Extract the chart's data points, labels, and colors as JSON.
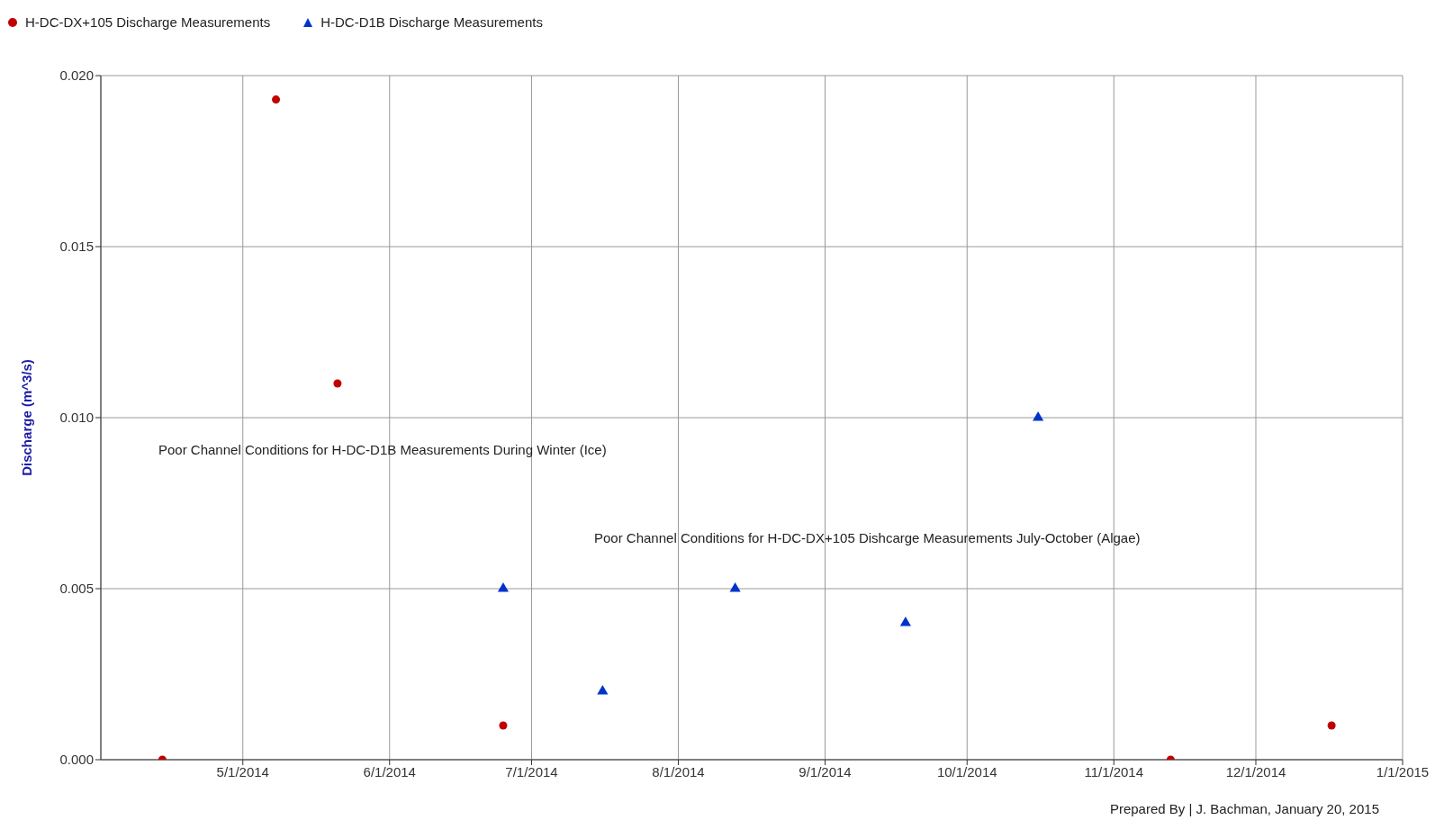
{
  "chart_data": {
    "type": "scatter",
    "ylabel": "Discharge (m^3/s)",
    "series": [
      {
        "name": "H-DC-DX+105 Discharge Measurements",
        "color": "#c00000",
        "marker": "circle",
        "x": [
          "2014-04-14",
          "2014-05-08",
          "2014-05-21",
          "2014-06-25",
          "2014-11-13",
          "2014-12-17"
        ],
        "values": [
          0,
          0.0193,
          0.011,
          0.001,
          0,
          0.001
        ]
      },
      {
        "name": "H-DC-D1B Discharge Measurements",
        "color": "#0033cc",
        "marker": "triangle",
        "x": [
          "2014-06-25",
          "2014-07-16",
          "2014-08-13",
          "2014-09-18",
          "2014-10-16"
        ],
        "values": [
          0.005,
          0.002,
          0.005,
          0.004,
          0.01
        ]
      }
    ],
    "xlim": [
      "2014-04-01",
      "2015-01-01"
    ],
    "xticks": [
      {
        "value": "2014-05-01",
        "label": "5/1/2014"
      },
      {
        "value": "2014-06-01",
        "label": "6/1/2014"
      },
      {
        "value": "2014-07-01",
        "label": "7/1/2014"
      },
      {
        "value": "2014-08-01",
        "label": "8/1/2014"
      },
      {
        "value": "2014-09-01",
        "label": "9/1/2014"
      },
      {
        "value": "2014-10-01",
        "label": "10/1/2014"
      },
      {
        "value": "2014-11-01",
        "label": "11/1/2014"
      },
      {
        "value": "2014-12-01",
        "label": "12/1/2014"
      },
      {
        "value": "2015-01-01",
        "label": "1/1/2015"
      }
    ],
    "ylim": [
      0,
      0.02
    ],
    "yticks": [
      {
        "value": 0,
        "label": "0.000"
      },
      {
        "value": 0.005,
        "label": "0.005"
      },
      {
        "value": 0.01,
        "label": "0.010"
      },
      {
        "value": 0.015,
        "label": "0.015"
      },
      {
        "value": 0.02,
        "label": "0.020"
      }
    ],
    "grid": true,
    "legend": "top left",
    "annotations": [
      "Poor Channel Conditions for H-DC-D1B Measurements During Winter (Ice)",
      "Poor Channel Conditions for H-DC-DX+105 Dishcarge Measurements July-October (Algae)",
      "Prepared By | J. Bachman, January 20, 2015"
    ]
  }
}
